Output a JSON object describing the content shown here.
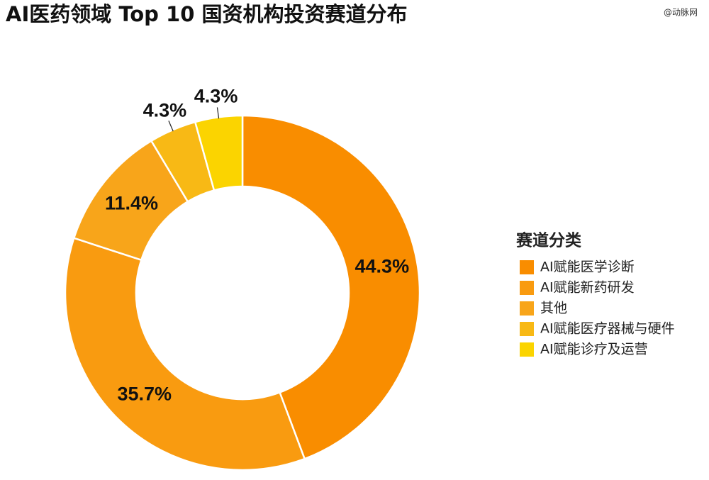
{
  "chart_data": {
    "type": "donut",
    "title": "AI医药领域 Top 10 国资机构投资赛道分布",
    "watermark": "@动脉网",
    "legend_title": "赛道分类",
    "legend": "right",
    "categories": [
      "AI赋能医学诊断",
      "AI赋能新药研发",
      "其他",
      "AI赋能医疗器械与硬件",
      "AI赋能诊疗及运营"
    ],
    "values": [
      44.3,
      35.7,
      11.4,
      4.3,
      4.3
    ],
    "value_labels": [
      "44.3%",
      "35.7%",
      "11.4%",
      "4.3%",
      "4.3%"
    ],
    "colors": [
      "#f98d00",
      "#f99b10",
      "#f8a51a",
      "#f8b915",
      "#fbd400"
    ]
  }
}
